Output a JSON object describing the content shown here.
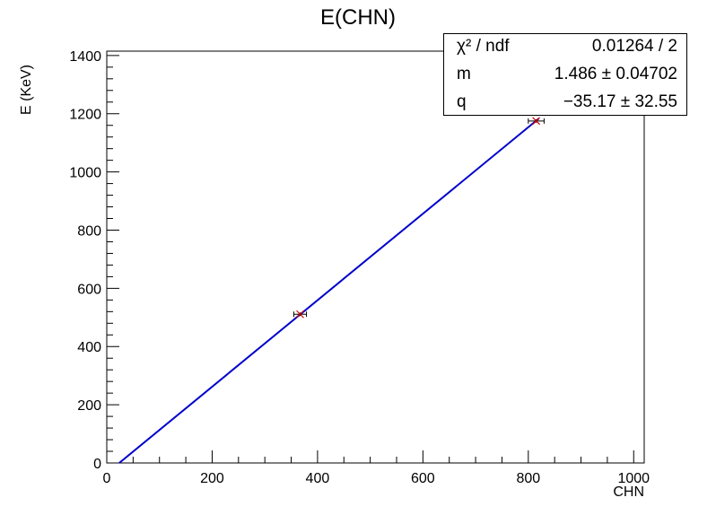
{
  "chart_data": {
    "type": "scatter",
    "title": "E(CHN)",
    "xlabel": "CHN",
    "ylabel": "E (KeV)",
    "xlim": [
      0,
      1020
    ],
    "ylim": [
      0,
      1415
    ],
    "xticks": [
      0,
      200,
      400,
      600,
      800,
      1000
    ],
    "yticks": [
      0,
      200,
      400,
      600,
      800,
      1000,
      1200,
      1400
    ],
    "grid": false,
    "points": [
      {
        "x": 367,
        "y": 511,
        "xerr": 12,
        "yerr": 6
      },
      {
        "x": 815,
        "y": 1175,
        "xerr": 15,
        "yerr": 6
      }
    ],
    "fit": {
      "m": 1.486,
      "q": -35.17,
      "x_range": [
        23.7,
        820
      ],
      "color": "#0000cc"
    },
    "colors": {
      "points": "#cc0000",
      "errorbars": "#000000",
      "fit": "#0000cc"
    }
  },
  "stats": {
    "rows": [
      {
        "key": "χ² / ndf",
        "value": "0.01264 / 2"
      },
      {
        "key": "m",
        "value": "1.486 ± 0.04702"
      },
      {
        "key": "q",
        "value": "−35.17 ± 32.55"
      }
    ]
  }
}
